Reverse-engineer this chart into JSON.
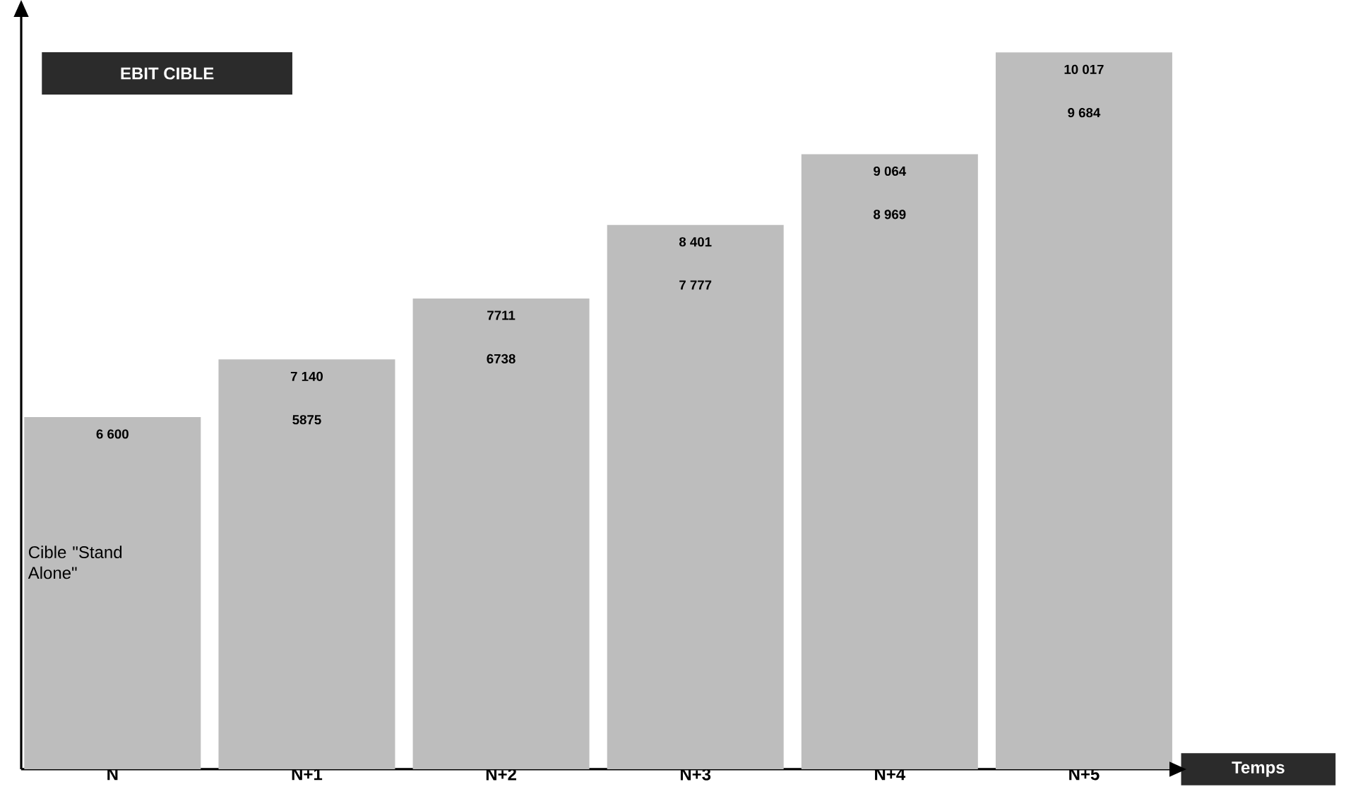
{
  "chart_data": {
    "type": "bar",
    "title": "EBIT CIBLE",
    "xlabel": "Temps",
    "categories": [
      "N",
      "N+1",
      "N+2",
      "N+3",
      "N+4",
      "N+5"
    ],
    "values": [
      6600,
      7140,
      7711,
      8401,
      9064,
      10017
    ],
    "value_labels": [
      "6 600",
      "7 140",
      "7711",
      "8 401",
      "9 064",
      "10 017"
    ],
    "color": "#bdbdbd",
    "ylim": [
      3300,
      10350
    ],
    "tick_labels": "x",
    "annotations": [
      "5875",
      "6738",
      "7 777",
      "8 969",
      "9 684",
      "Cible \"Stand Alone\""
    ]
  }
}
